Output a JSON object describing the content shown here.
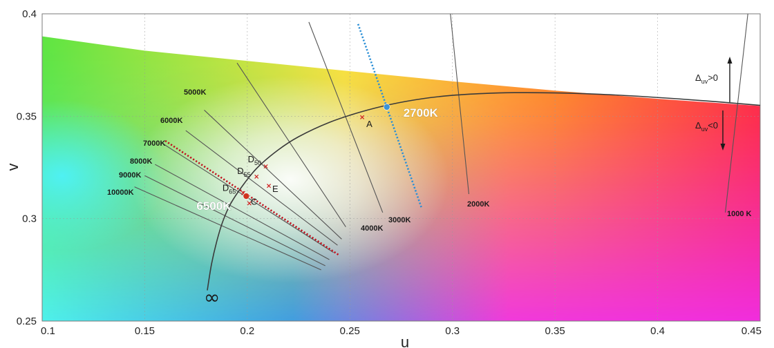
{
  "chart_data": {
    "type": "scatter",
    "xlabel": "u",
    "ylabel": "v",
    "xlim": [
      0.1,
      0.45
    ],
    "ylim": [
      0.25,
      0.4
    ],
    "grid": true,
    "x_tick_labels": [
      "0.1",
      "0.15",
      "0.2",
      "0.25",
      "0.3",
      "0.35",
      "0.4",
      "0.45"
    ],
    "y_tick_labels": [
      "0.25",
      "0.3",
      "0.35",
      "0.4"
    ],
    "planckian_locus": {
      "u": [
        0.1805,
        0.1825,
        0.185,
        0.188,
        0.192,
        0.198,
        0.205,
        0.215,
        0.225,
        0.24,
        0.255,
        0.27,
        0.285,
        0.3,
        0.315,
        0.33,
        0.35,
        0.37,
        0.39,
        0.41,
        0.43,
        0.45
      ],
      "v": [
        0.265,
        0.2775,
        0.2885,
        0.2985,
        0.3075,
        0.3165,
        0.325,
        0.3335,
        0.34,
        0.347,
        0.352,
        0.3558,
        0.3585,
        0.3602,
        0.3611,
        0.3615,
        0.3614,
        0.3608,
        0.3598,
        0.3585,
        0.357,
        0.3553
      ]
    },
    "isotherms": [
      {
        "label": "10000K",
        "u1": 0.145,
        "v1": 0.3155,
        "u2": 0.236,
        "v2": 0.275
      },
      {
        "label": "9000K",
        "u1": 0.15,
        "v1": 0.321,
        "u2": 0.238,
        "v2": 0.277
      },
      {
        "label": "8000K",
        "u1": 0.155,
        "v1": 0.3265,
        "u2": 0.24,
        "v2": 0.28
      },
      {
        "label": "7000K",
        "u1": 0.159,
        "v1": 0.3365,
        "u2": 0.242,
        "v2": 0.2835
      },
      {
        "label": "6000K",
        "u1": 0.17,
        "v1": 0.343,
        "u2": 0.244,
        "v2": 0.287
      },
      {
        "label": "5000K",
        "u1": 0.179,
        "v1": 0.353,
        "u2": 0.246,
        "v2": 0.29
      },
      {
        "label": "4000K",
        "u1": 0.195,
        "v1": 0.376,
        "u2": 0.248,
        "v2": 0.296
      },
      {
        "label": "3000K",
        "u1": 0.23,
        "v1": 0.396,
        "u2": 0.266,
        "v2": 0.303
      },
      {
        "label": "2000K",
        "u1": 0.299,
        "v1": 0.4,
        "u2": 0.308,
        "v2": 0.312
      },
      {
        "label": "1000 K",
        "u1": 0.444,
        "v1": 0.4,
        "u2": 0.433,
        "v2": 0.303
      }
    ],
    "cct_lines": [
      {
        "label": "2700K",
        "u1": 0.254,
        "v1": 0.395,
        "u2": 0.285,
        "v2": 0.305,
        "color": "#2b8fd6"
      },
      {
        "label": "6500K",
        "u1": 0.16,
        "v1": 0.338,
        "u2": 0.245,
        "v2": 0.282,
        "color": "#c0121e"
      }
    ],
    "special_points": [
      {
        "label": "2700K",
        "u": 0.268,
        "v": 0.3545,
        "color": "#3b93d6"
      },
      {
        "label": "6500K",
        "u": 0.1995,
        "v": 0.311,
        "color": "#d0331f"
      }
    ],
    "illuminants": [
      {
        "label": "A",
        "u": 0.256,
        "v": 0.3495
      },
      {
        "label": "D50",
        "base": "D",
        "sub": "50",
        "u": 0.209,
        "v": 0.3255
      },
      {
        "label": "D55",
        "base": "D",
        "sub": "55",
        "u": 0.2045,
        "v": 0.3205
      },
      {
        "label": "D65",
        "base": "D",
        "sub": "65",
        "u": 0.198,
        "v": 0.3125
      },
      {
        "label": "C",
        "u": 0.201,
        "v": 0.3075
      },
      {
        "label": "E",
        "u": 0.2105,
        "v": 0.316
      }
    ],
    "annotations": {
      "infinity": "∞",
      "duv_pos": {
        "base": "Δ",
        "sub": "uv",
        "rest": ">0"
      },
      "duv_neg": {
        "base": "Δ",
        "sub": "uv",
        "rest": "<0"
      }
    },
    "colors": {
      "green": "#5fe540",
      "yellow": "#ffe63a",
      "orange": "#ff8f1e",
      "red": "#ff2e37",
      "magenta": "#ef2df0",
      "blue": "#2f95f2",
      "cyan": "#4df2ff",
      "white": "#ffffff",
      "locus": "#3a3a3a",
      "isotherm": "#555555",
      "cross": "#d02020"
    }
  }
}
